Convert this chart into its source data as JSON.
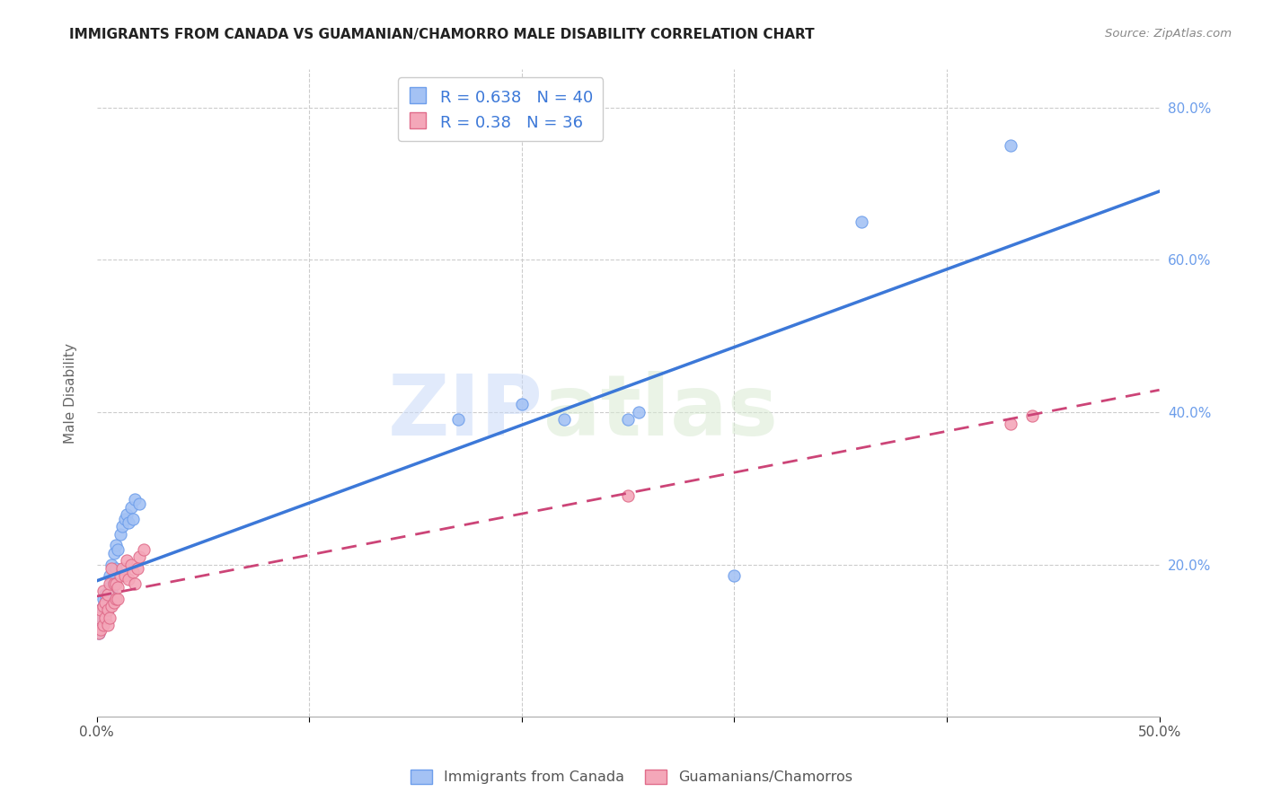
{
  "title": "IMMIGRANTS FROM CANADA VS GUAMANIAN/CHAMORRO MALE DISABILITY CORRELATION CHART",
  "source": "Source: ZipAtlas.com",
  "ylabel": "Male Disability",
  "xlim": [
    0.0,
    0.5
  ],
  "ylim": [
    0.0,
    0.85
  ],
  "x_tick_positions": [
    0.0,
    0.1,
    0.2,
    0.3,
    0.4,
    0.5
  ],
  "x_tick_labels": [
    "0.0%",
    "",
    "",
    "",
    "",
    "50.0%"
  ],
  "y_tick_positions": [
    0.0,
    0.2,
    0.4,
    0.6,
    0.8
  ],
  "y_tick_labels_left": [
    "",
    "",
    "",
    "",
    ""
  ],
  "y_tick_labels_right": [
    "",
    "20.0%",
    "40.0%",
    "60.0%",
    "80.0%"
  ],
  "blue_R": 0.638,
  "blue_N": 40,
  "pink_R": 0.38,
  "pink_N": 36,
  "blue_color": "#a4c2f4",
  "pink_color": "#f4a7b9",
  "blue_edge_color": "#6d9eeb",
  "pink_edge_color": "#e06c8a",
  "blue_line_color": "#3c78d8",
  "pink_line_color": "#cc4477",
  "legend_label_blue": "Immigrants from Canada",
  "legend_label_pink": "Guamanians/Chamorros",
  "watermark_zip": "ZIP",
  "watermark_atlas": "atlas",
  "blue_x": [
    0.001,
    0.001,
    0.002,
    0.002,
    0.002,
    0.003,
    0.003,
    0.003,
    0.004,
    0.004,
    0.004,
    0.005,
    0.005,
    0.006,
    0.006,
    0.006,
    0.007,
    0.007,
    0.008,
    0.008,
    0.009,
    0.009,
    0.01,
    0.011,
    0.012,
    0.013,
    0.014,
    0.015,
    0.016,
    0.017,
    0.018,
    0.02,
    0.17,
    0.2,
    0.22,
    0.25,
    0.3,
    0.255,
    0.36,
    0.43
  ],
  "blue_y": [
    0.11,
    0.125,
    0.12,
    0.13,
    0.14,
    0.125,
    0.145,
    0.155,
    0.135,
    0.15,
    0.16,
    0.14,
    0.155,
    0.155,
    0.17,
    0.185,
    0.165,
    0.2,
    0.175,
    0.215,
    0.195,
    0.225,
    0.22,
    0.24,
    0.25,
    0.26,
    0.265,
    0.255,
    0.275,
    0.26,
    0.285,
    0.28,
    0.39,
    0.41,
    0.39,
    0.39,
    0.185,
    0.4,
    0.65,
    0.75
  ],
  "pink_x": [
    0.001,
    0.001,
    0.002,
    0.002,
    0.003,
    0.003,
    0.003,
    0.004,
    0.004,
    0.005,
    0.005,
    0.005,
    0.006,
    0.006,
    0.007,
    0.007,
    0.008,
    0.008,
    0.009,
    0.009,
    0.01,
    0.01,
    0.011,
    0.012,
    0.013,
    0.014,
    0.015,
    0.016,
    0.017,
    0.018,
    0.019,
    0.02,
    0.022,
    0.25,
    0.43,
    0.44
  ],
  "pink_y": [
    0.11,
    0.13,
    0.115,
    0.14,
    0.12,
    0.145,
    0.165,
    0.13,
    0.15,
    0.12,
    0.14,
    0.16,
    0.13,
    0.175,
    0.145,
    0.195,
    0.15,
    0.175,
    0.155,
    0.175,
    0.155,
    0.17,
    0.185,
    0.195,
    0.185,
    0.205,
    0.18,
    0.2,
    0.19,
    0.175,
    0.195,
    0.21,
    0.22,
    0.29,
    0.385,
    0.395
  ]
}
